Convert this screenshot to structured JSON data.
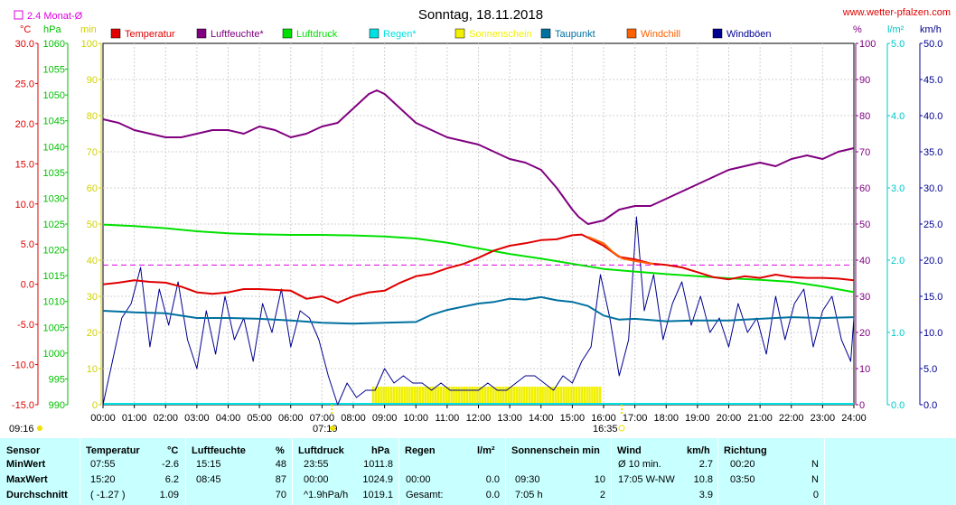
{
  "header": {
    "title": "Sonntag, 18.11.2018",
    "site": "www.wetter-pfalzen.com",
    "monat_label": "2.4 Monat-Ø"
  },
  "axis_units": {
    "temp": "°C",
    "pressure": "hPa",
    "minutes": "min",
    "percent": "%",
    "rain": "l/m²",
    "wind": "km/h"
  },
  "sun": {
    "sunrise": "07:19",
    "sunset": "16:35",
    "daylength": "09:16"
  },
  "colors": {
    "temperature": "#e00000",
    "humidity": "#800080",
    "pressure": "#00e000",
    "rain": "#00e0e0",
    "sunshine": "#f0f000",
    "dewpoint": "#0070a0",
    "windchill": "#ff6000",
    "gusts": "#000090",
    "monthly_avg": "#e000e0"
  },
  "legend": [
    {
      "name": "Temperatur",
      "color": "#e00000"
    },
    {
      "name": "Luftfeuchte*",
      "color": "#800080"
    },
    {
      "name": "Luftdruck",
      "color": "#00e000"
    },
    {
      "name": "Regen*",
      "color": "#00e0e0"
    },
    {
      "name": "Sonnenschein",
      "color": "#f0f000"
    },
    {
      "name": "Taupunkt",
      "color": "#0070a0"
    },
    {
      "name": "Windchill",
      "color": "#ff6000"
    },
    {
      "name": "Windböen",
      "color": "#000090"
    }
  ],
  "chart_data": {
    "type": "line",
    "title": "Sonntag, 18.11.2018",
    "x_labels": [
      "00:00",
      "01:00",
      "02:00",
      "03:00",
      "04:00",
      "05:00",
      "06:00",
      "07:00",
      "08:00",
      "09:00",
      "10:00",
      "11:00",
      "12:00",
      "13:00",
      "14:00",
      "15:00",
      "16:00",
      "17:00",
      "18:00",
      "19:00",
      "20:00",
      "21:00",
      "22:00",
      "23:00",
      "24:00"
    ],
    "y_axes": {
      "temp": {
        "unit": "°C",
        "range": [
          -15,
          30
        ],
        "ticks": [
          "30.0",
          "25.0",
          "20.0",
          "15.0",
          "10.0",
          "5.0",
          "0.0",
          "-5.0",
          "-10.0",
          "-15.0"
        ]
      },
      "pressure": {
        "unit": "hPa",
        "range": [
          990,
          1060
        ],
        "ticks": [
          "1060",
          "1055",
          "1050",
          "1045",
          "1040",
          "1035",
          "1030",
          "1025",
          "1020",
          "1015",
          "1010",
          "1005",
          "1000",
          "995",
          "990"
        ]
      },
      "sun_minutes": {
        "unit": "min",
        "range": [
          0,
          100
        ],
        "ticks": [
          "100",
          "90",
          "80",
          "70",
          "60",
          "50",
          "40",
          "30",
          "20",
          "10",
          "0"
        ]
      },
      "humidity": {
        "unit": "%",
        "range": [
          0,
          100
        ],
        "ticks": [
          "100",
          "90",
          "80",
          "70",
          "60",
          "50",
          "40",
          "30",
          "20",
          "10",
          "0"
        ]
      },
      "rain": {
        "unit": "l/m²",
        "range": [
          0,
          5
        ],
        "ticks": [
          "5.0",
          "4.0",
          "3.0",
          "2.0",
          "1.0",
          "0.0"
        ]
      },
      "wind": {
        "unit": "km/h",
        "range": [
          0,
          50
        ],
        "ticks": [
          "50.0",
          "45.0",
          "40.0",
          "35.0",
          "30.0",
          "25.0",
          "20.0",
          "15.0",
          "10.0",
          "5.0",
          "0.0"
        ]
      }
    },
    "monthly_avg_temp": 2.4,
    "series": [
      {
        "name": "Temperatur",
        "axis": "temp",
        "x": [
          0,
          0.5,
          1,
          1.5,
          2,
          2.5,
          3,
          3.5,
          4,
          4.5,
          5,
          5.5,
          6,
          6.5,
          7,
          7.5,
          8,
          8.5,
          9,
          9.5,
          10,
          10.5,
          11,
          11.5,
          12,
          12.5,
          13,
          13.5,
          14,
          14.5,
          15,
          15.3,
          15.5,
          16,
          16.5,
          17,
          17.5,
          18,
          18.5,
          19,
          19.5,
          20,
          20.5,
          21,
          21.5,
          22,
          22.5,
          23,
          23.5,
          24
        ],
        "values": [
          0.0,
          0.2,
          0.5,
          0.3,
          0.2,
          -0.3,
          -1.0,
          -1.2,
          -1.0,
          -0.6,
          -0.6,
          -0.7,
          -0.8,
          -1.8,
          -1.5,
          -2.3,
          -1.5,
          -1.0,
          -0.8,
          0.2,
          1.0,
          1.3,
          2.0,
          2.5,
          3.3,
          4.2,
          4.8,
          5.1,
          5.5,
          5.6,
          6.1,
          6.2,
          5.8,
          4.8,
          3.4,
          3.1,
          2.6,
          2.4,
          2.1,
          1.5,
          0.9,
          0.6,
          1.0,
          0.8,
          1.2,
          0.9,
          0.8,
          0.8,
          0.7,
          0.5
        ]
      },
      {
        "name": "Luftfeuchte*",
        "axis": "humidity",
        "x": [
          0,
          0.5,
          1,
          1.5,
          2,
          2.5,
          3,
          3.5,
          4,
          4.5,
          5,
          5.5,
          6,
          6.5,
          7,
          7.5,
          8,
          8.5,
          8.75,
          9,
          9.5,
          10,
          10.5,
          11,
          11.5,
          12,
          12.5,
          13,
          13.5,
          14,
          14.5,
          15,
          15.2,
          15.5,
          16,
          16.5,
          17,
          17.5,
          18,
          18.5,
          19,
          19.5,
          20,
          20.5,
          21,
          21.5,
          22,
          22.5,
          23,
          23.5,
          24
        ],
        "values": [
          79,
          78,
          76,
          75,
          74,
          74,
          75,
          76,
          76,
          75,
          77,
          76,
          74,
          75,
          77,
          78,
          82,
          86,
          87,
          86,
          82,
          78,
          76,
          74,
          73,
          72,
          70,
          68,
          67,
          65,
          60,
          54,
          52,
          50,
          51,
          54,
          55,
          55,
          57,
          59,
          61,
          63,
          65,
          66,
          67,
          66,
          68,
          69,
          68,
          70,
          71
        ]
      },
      {
        "name": "Luftdruck",
        "axis": "pressure",
        "x": [
          0,
          1,
          2,
          3,
          4,
          5,
          6,
          7,
          8,
          9,
          10,
          11,
          12,
          13,
          14,
          15,
          16,
          17,
          18,
          19,
          20,
          21,
          22,
          23,
          24
        ],
        "values": [
          1024.9,
          1024.6,
          1024.2,
          1023.6,
          1023.2,
          1023.0,
          1022.9,
          1022.9,
          1022.8,
          1022.6,
          1022.2,
          1021.4,
          1020.3,
          1019.2,
          1018.3,
          1017.3,
          1016.3,
          1015.8,
          1015.3,
          1014.9,
          1014.5,
          1014.2,
          1013.8,
          1012.9,
          1011.8
        ]
      },
      {
        "name": "Taupunkt",
        "axis": "temp",
        "x": [
          0,
          1,
          2,
          3,
          4,
          5,
          6,
          7,
          8,
          9,
          10,
          10.5,
          11,
          12,
          12.5,
          13,
          13.5,
          14,
          14.5,
          15,
          15.5,
          16,
          16.5,
          17,
          18,
          19,
          20,
          21,
          22,
          23,
          24
        ],
        "values": [
          -3.3,
          -3.5,
          -3.6,
          -4.2,
          -4.2,
          -4.3,
          -4.5,
          -4.8,
          -4.9,
          -4.8,
          -4.7,
          -3.8,
          -3.2,
          -2.4,
          -2.2,
          -1.8,
          -1.9,
          -1.6,
          -2.0,
          -2.2,
          -2.7,
          -3.9,
          -4.4,
          -4.3,
          -4.6,
          -4.5,
          -4.5,
          -4.3,
          -4.1,
          -4.2,
          -4.1
        ]
      },
      {
        "name": "Windchill",
        "axis": "temp",
        "x": [
          15.5,
          16,
          16.3,
          16.6,
          17,
          17.3,
          17.6
        ],
        "values": [
          5.9,
          5.1,
          4.0,
          3.2,
          2.9,
          2.7,
          2.5
        ]
      },
      {
        "name": "Windböen",
        "axis": "wind",
        "x": [
          0,
          0.3,
          0.6,
          0.9,
          1.2,
          1.5,
          1.8,
          2.1,
          2.4,
          2.7,
          3.0,
          3.3,
          3.6,
          3.9,
          4.2,
          4.5,
          4.8,
          5.1,
          5.4,
          5.7,
          6.0,
          6.3,
          6.6,
          6.9,
          7.2,
          7.5,
          7.8,
          8.1,
          8.4,
          8.7,
          9.0,
          9.3,
          9.6,
          9.9,
          10.2,
          10.5,
          10.8,
          11.1,
          11.4,
          11.7,
          12.0,
          12.3,
          12.6,
          12.9,
          13.2,
          13.5,
          13.8,
          14.1,
          14.4,
          14.7,
          15.0,
          15.3,
          15.6,
          15.9,
          16.2,
          16.5,
          16.8,
          17.05,
          17.3,
          17.6,
          17.9,
          18.2,
          18.5,
          18.8,
          19.1,
          19.4,
          19.7,
          20.0,
          20.3,
          20.6,
          20.9,
          21.2,
          21.5,
          21.8,
          22.1,
          22.4,
          22.7,
          23.0,
          23.3,
          23.6,
          23.9,
          24
        ],
        "values": [
          0,
          6,
          12,
          14,
          19,
          8,
          16,
          11,
          17,
          9,
          5,
          13,
          7,
          15,
          9,
          12,
          6,
          14,
          10,
          16,
          8,
          13,
          12,
          9,
          4,
          0,
          3,
          1,
          2,
          2,
          5,
          3,
          4,
          3,
          3,
          2,
          3,
          2,
          2,
          2,
          2,
          3,
          2,
          2,
          3,
          4,
          4,
          3,
          2,
          4,
          3,
          6,
          8,
          18,
          12,
          4,
          9,
          26,
          13,
          18,
          9,
          14,
          17,
          11,
          15,
          10,
          12,
          8,
          14,
          10,
          12,
          7,
          15,
          9,
          14,
          16,
          8,
          13,
          15,
          9,
          6,
          12
        ]
      }
    ],
    "sunshine_bars": {
      "start": 8.6,
      "end": 15.9,
      "values_min": 5
    }
  },
  "table": {
    "headers": {
      "sensor": "Sensor",
      "temperatur": "Temperatur",
      "temp_unit": "°C",
      "luftfeuchte": "Luftfeuchte",
      "hum_unit": "%",
      "luftdruck": "Luftdruck",
      "press_unit": "hPa",
      "regen": "Regen",
      "rain_unit": "l/m²",
      "sonne": "Sonnenschein min",
      "wind": "Wind",
      "wind_unit": "km/h",
      "richtung": "Richtung"
    },
    "rows": [
      {
        "label": "MinWert",
        "t_time": "07:55",
        "t_val": "-2.6",
        "h_time": "15:15",
        "h_val": "48",
        "p_time": "23:55",
        "p_val": "1011.8",
        "r_time": "",
        "r_val": "",
        "s_time": "",
        "s_val": "",
        "w_time": "Ø 10 min.",
        "w_val": "2.7",
        "d_time": "00:20",
        "d_val": "N"
      },
      {
        "label": "MaxWert",
        "t_time": "15:20",
        "t_val": "6.2",
        "h_time": "08:45",
        "h_val": "87",
        "p_time": "00:00",
        "p_val": "1024.9",
        "r_time": "00:00",
        "r_val": "0.0",
        "s_time": "09:30",
        "s_val": "10",
        "w_time": "17:05   W-NW",
        "w_val": "10.8",
        "d_time": "03:50",
        "d_val": "N"
      },
      {
        "label": "Durchschnitt",
        "t_time": "( -1.27 )",
        "t_val": "1.09",
        "h_time": "",
        "h_val": "70",
        "p_time": "^1.9hPa/h",
        "p_val": "1019.1",
        "r_time": "Gesamt:",
        "r_val": "0.0",
        "s_time": "7:05 h",
        "s_val": "2",
        "w_time": "",
        "w_val": "3.9",
        "d_time": "",
        "d_val": "0"
      }
    ]
  }
}
